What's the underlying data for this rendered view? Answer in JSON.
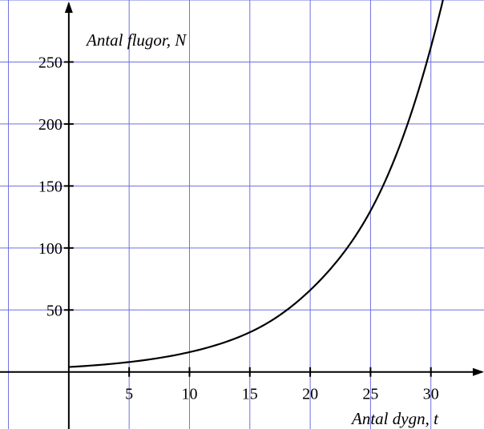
{
  "chart_data": {
    "type": "line",
    "title": "",
    "xlabel": "Antal dygn, t",
    "ylabel": "Antal flugor, N",
    "xlim": [
      -5.7,
      34.4
    ],
    "ylim": [
      -46,
      300
    ],
    "grid": true,
    "x_ticks": [
      5,
      10,
      15,
      20,
      25,
      30
    ],
    "y_ticks": [
      50,
      100,
      150,
      200,
      250
    ],
    "x_tick_labels": [
      "5",
      "10",
      "15",
      "20",
      "25",
      "30"
    ],
    "y_tick_labels": [
      "50",
      "100",
      "150",
      "200",
      "250"
    ],
    "series": [
      {
        "x": [
          0,
          5,
          10,
          15,
          20,
          25,
          30,
          31
        ],
        "y": [
          4,
          8,
          16,
          32,
          66,
          130,
          262,
          300
        ]
      }
    ]
  },
  "colors": {
    "grid": "#6f6fe0",
    "axis": "#000000",
    "curve": "#000000",
    "background": "#ffffff"
  }
}
